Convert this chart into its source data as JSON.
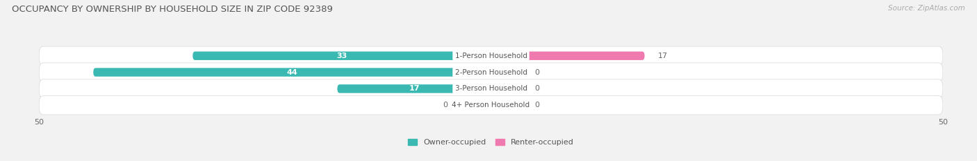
{
  "title": "OCCUPANCY BY OWNERSHIP BY HOUSEHOLD SIZE IN ZIP CODE 92389",
  "source": "Source: ZipAtlas.com",
  "categories": [
    "1-Person Household",
    "2-Person Household",
    "3-Person Household",
    "4+ Person Household"
  ],
  "owner_values": [
    33,
    44,
    17,
    0
  ],
  "renter_values": [
    17,
    0,
    0,
    0
  ],
  "owner_color": "#3ab8b2",
  "renter_color": "#f07ab0",
  "renter_stub_color": "#f5b8d0",
  "owner_label": "Owner-occupied",
  "renter_label": "Renter-occupied",
  "xlim": [
    -50,
    50
  ],
  "x_ticks": [
    -50,
    50
  ],
  "x_tick_labels": [
    "50",
    "50"
  ],
  "background_color": "#f2f2f2",
  "row_bg_color": "#e8e8e8",
  "row_bg_light": "#ebebeb",
  "title_fontsize": 9.5,
  "source_fontsize": 7.5,
  "bar_label_fontsize": 8,
  "category_fontsize": 7.5,
  "bar_height": 0.52,
  "stub_size": 4
}
